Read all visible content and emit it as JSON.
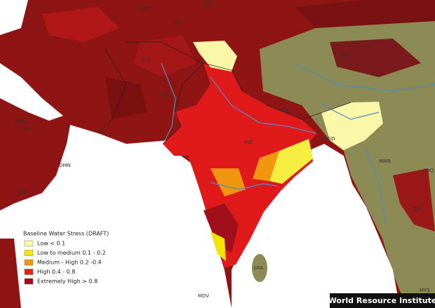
{
  "legend": {
    "title": "Baseline Water Stress (DRAFT)",
    "items": [
      {
        "label": "Low < 0.1",
        "color": "#fbf7a8"
      },
      {
        "label": "Low to medium 0.1 - 0.2",
        "color": "#f2e600"
      },
      {
        "label": "Medium - High 0.2 -0.4",
        "color": "#f0960f"
      },
      {
        "label": "High 0.4 - 0.8",
        "color": "#e8200f"
      },
      {
        "label": "Extremely High > 0.8",
        "color": "#a0101a"
      }
    ]
  },
  "labels": [
    "UZB",
    "KGZ",
    "TJK",
    "AFG",
    "PAK",
    "CHN",
    "NPL",
    "IND",
    "BGD",
    "MMR",
    "LAO",
    "THA",
    "BHR",
    "QAT",
    "OMN",
    "YEM",
    "LKA",
    "MDV",
    "MYS"
  ],
  "credit": "World Resource Institute"
}
